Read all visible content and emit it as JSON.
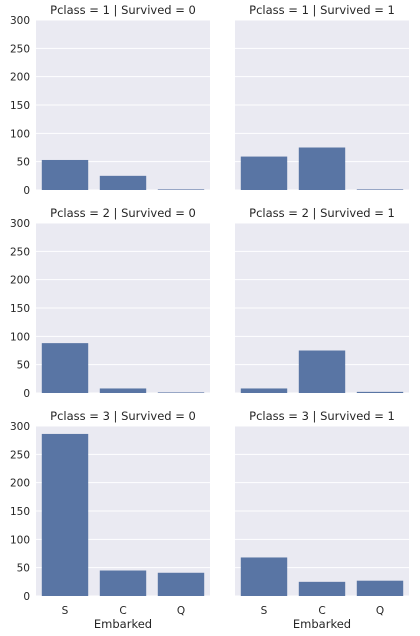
{
  "chart_data": {
    "type": "bar",
    "layout": "facet-grid",
    "facet_rows": 3,
    "facet_cols": 2,
    "categories": [
      "S",
      "C",
      "Q"
    ],
    "xlabel": "Embarked",
    "ylabel": "",
    "ylim": [
      0,
      300
    ],
    "yticks": [
      0,
      50,
      100,
      150,
      200,
      250,
      300
    ],
    "grid": true,
    "bar_color": "#5975a4",
    "panel_background": "#eaeaf2",
    "panels": [
      {
        "title": "Pclass = 1 | Survived = 0",
        "values": [
          53,
          25,
          1
        ]
      },
      {
        "title": "Pclass = 1 | Survived = 1",
        "values": [
          59,
          75,
          1
        ]
      },
      {
        "title": "Pclass = 2 | Survived = 0",
        "values": [
          88,
          8,
          1
        ]
      },
      {
        "title": "Pclass = 2 | Survived = 1",
        "values": [
          8,
          75,
          2
        ]
      },
      {
        "title": "Pclass = 3 | Survived = 0",
        "values": [
          286,
          45,
          41
        ]
      },
      {
        "title": "Pclass = 3 | Survived = 1",
        "values": [
          68,
          25,
          27
        ]
      }
    ]
  }
}
